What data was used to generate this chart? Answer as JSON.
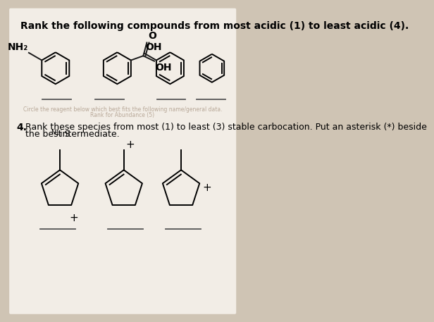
{
  "bg_color": "#cfc4b4",
  "page_color": "#f2ede6",
  "title1": "Rank the following compounds from most acidic (1) to least acidic (4).",
  "q4_label": "4.",
  "q4_text1": "Rank these species from most (1) to least (3) stable carbocation. Put an asterisk (*) beside",
  "q4_text2": "the best S",
  "q4_text2b": "N1",
  "q4_text2c": " intermediate.",
  "line_color": "#1a1a1a",
  "faint_text1": "Circle the reagent below which best fits the following name/general data.",
  "faint_text2": "Rank for Abundance (5)"
}
